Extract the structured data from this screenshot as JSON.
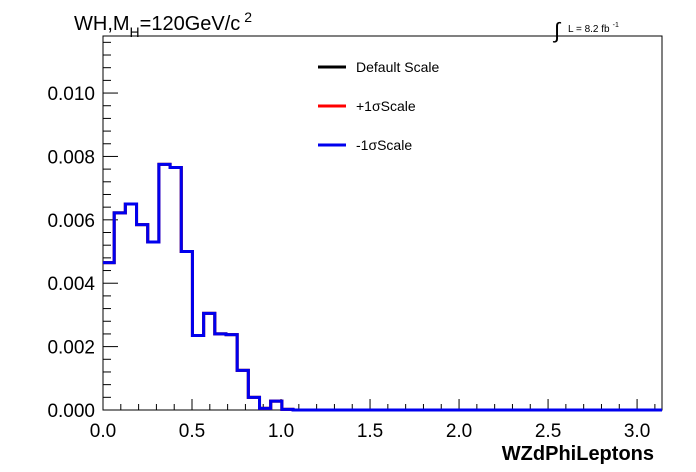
{
  "chart_data": {
    "type": "line",
    "title": "WH,M",
    "title_sub": "H",
    "title_rest": "=120GeV/c",
    "title_sup": "2",
    "lumi": {
      "integral": "∫",
      "text": "L = 8.2 fb",
      "sup": "-1"
    },
    "xlabel": "WZdPhiLeptons",
    "ylabel": "",
    "xlim": [
      0.0,
      3.14
    ],
    "ylim": [
      0.0,
      0.0118
    ],
    "x_ticks": [
      "0.0",
      "0.5",
      "1.0",
      "1.5",
      "2.0",
      "2.5",
      "3.0"
    ],
    "x_tick_values": [
      0.0,
      0.5,
      1.0,
      1.5,
      2.0,
      2.5,
      3.0
    ],
    "y_ticks": [
      "0.000",
      "0.002",
      "0.004",
      "0.006",
      "0.008",
      "0.010"
    ],
    "y_tick_values": [
      0.0,
      0.002,
      0.004,
      0.006,
      0.008,
      0.01
    ],
    "grid": false,
    "legend_position": "top-center",
    "bin_width": 0.0628,
    "series": [
      {
        "name": "Default Scale",
        "color": "#000000",
        "values": [
          0.00465,
          0.00622,
          0.0065,
          0.00585,
          0.0053,
          0.00775,
          0.00765,
          0.005,
          0.00235,
          0.00305,
          0.0024,
          0.00238,
          0.00125,
          0.0004,
          5e-05,
          0.00028,
          2e-05,
          0,
          0,
          0,
          0,
          0,
          0,
          0,
          0,
          0,
          0,
          0,
          0,
          0,
          0,
          0,
          0,
          0,
          0,
          0,
          0,
          0,
          0,
          0,
          0,
          0,
          0,
          0,
          0,
          0,
          0,
          0,
          0,
          0
        ]
      },
      {
        "name": "+1σScale",
        "color": "#ff0000",
        "values": [
          0.00465,
          0.00622,
          0.0065,
          0.00585,
          0.0053,
          0.00775,
          0.00765,
          0.005,
          0.00235,
          0.00305,
          0.0024,
          0.00238,
          0.00125,
          0.0004,
          5e-05,
          0.00028,
          2e-05,
          0,
          0,
          0,
          0,
          0,
          0,
          0,
          0,
          0,
          0,
          0,
          0,
          0,
          0,
          0,
          0,
          0,
          0,
          0,
          0,
          0,
          0,
          0,
          0,
          0,
          0,
          0,
          0,
          0,
          0,
          0,
          0,
          0
        ]
      },
      {
        "name": "-1σScale",
        "color": "#0000ee",
        "values": [
          0.00465,
          0.00622,
          0.0065,
          0.00585,
          0.0053,
          0.00775,
          0.00765,
          0.005,
          0.00235,
          0.00305,
          0.0024,
          0.00238,
          0.00125,
          0.0004,
          5e-05,
          0.00028,
          2e-05,
          0,
          0,
          0,
          0,
          0,
          0,
          0,
          0,
          0,
          0,
          0,
          0,
          0,
          0,
          0,
          0,
          0,
          0,
          0,
          0,
          0,
          0,
          0,
          0,
          0,
          0,
          0,
          0,
          0,
          0,
          0,
          0,
          0
        ]
      }
    ]
  }
}
